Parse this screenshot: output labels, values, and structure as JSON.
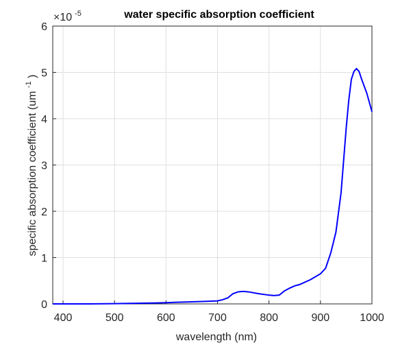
{
  "chart_data": {
    "type": "line",
    "title": "water specific absorption coefficient",
    "xlabel": "wavelength (nm)",
    "ylabel": "specific absorption coefficient (um",
    "ylabel_sup": "-1",
    "ylabel_end": ")",
    "y_exponent_base": "×10",
    "y_exponent_power": "-5",
    "xlim": [
      380,
      1000
    ],
    "ylim": [
      0,
      6
    ],
    "x_ticks": [
      400,
      500,
      600,
      700,
      800,
      900,
      1000
    ],
    "y_ticks": [
      0,
      1,
      2,
      3,
      4,
      5,
      6
    ],
    "grid": true,
    "line_color": "#0000ff",
    "series": [
      {
        "x": [
          380,
          400,
          450,
          500,
          550,
          580,
          600,
          620,
          650,
          680,
          700,
          710,
          720,
          730,
          740,
          750,
          760,
          780,
          800,
          810,
          820,
          830,
          840,
          850,
          860,
          880,
          900,
          910,
          920,
          930,
          940,
          950,
          955,
          960,
          965,
          970,
          975,
          980,
          990,
          1000
        ],
        "y": [
          0.0,
          0.0,
          0.0,
          0.005,
          0.015,
          0.02,
          0.025,
          0.035,
          0.045,
          0.055,
          0.065,
          0.09,
          0.13,
          0.22,
          0.26,
          0.27,
          0.26,
          0.22,
          0.19,
          0.18,
          0.19,
          0.28,
          0.34,
          0.39,
          0.42,
          0.52,
          0.65,
          0.77,
          1.1,
          1.55,
          2.4,
          3.8,
          4.4,
          4.85,
          5.02,
          5.08,
          5.02,
          4.85,
          4.55,
          4.15
        ]
      }
    ]
  }
}
